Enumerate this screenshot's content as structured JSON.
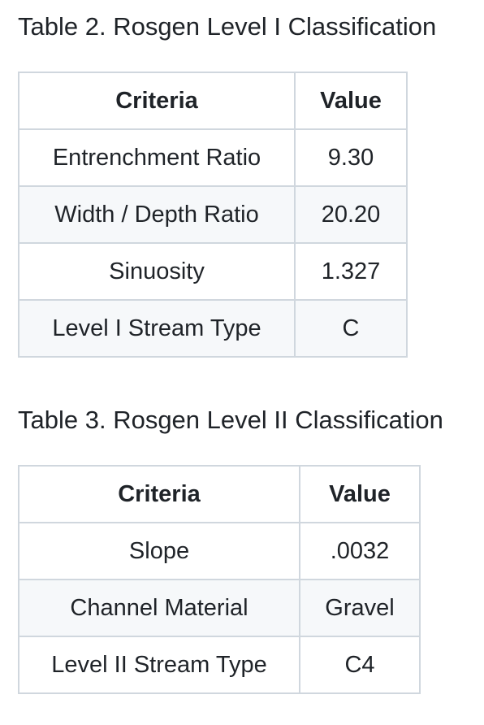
{
  "table2": {
    "caption": "Table 2. Rosgen Level I Classification",
    "headers": [
      "Criteria",
      "Value"
    ],
    "rows": [
      [
        "Entrenchment Ratio",
        "9.30"
      ],
      [
        "Width / Depth Ratio",
        "20.20"
      ],
      [
        "Sinuosity",
        "1.327"
      ],
      [
        "Level I Stream Type",
        "C"
      ]
    ]
  },
  "table3": {
    "caption": "Table 3. Rosgen Level II Classification",
    "headers": [
      "Criteria",
      "Value"
    ],
    "rows": [
      [
        "Slope",
        ".0032"
      ],
      [
        "Channel Material",
        "Gravel"
      ],
      [
        "Level II Stream Type",
        "C4"
      ]
    ]
  },
  "colors": {
    "border": "#d0d7de",
    "alt_row_bg": "#f6f8fa",
    "text": "#1f2328"
  }
}
